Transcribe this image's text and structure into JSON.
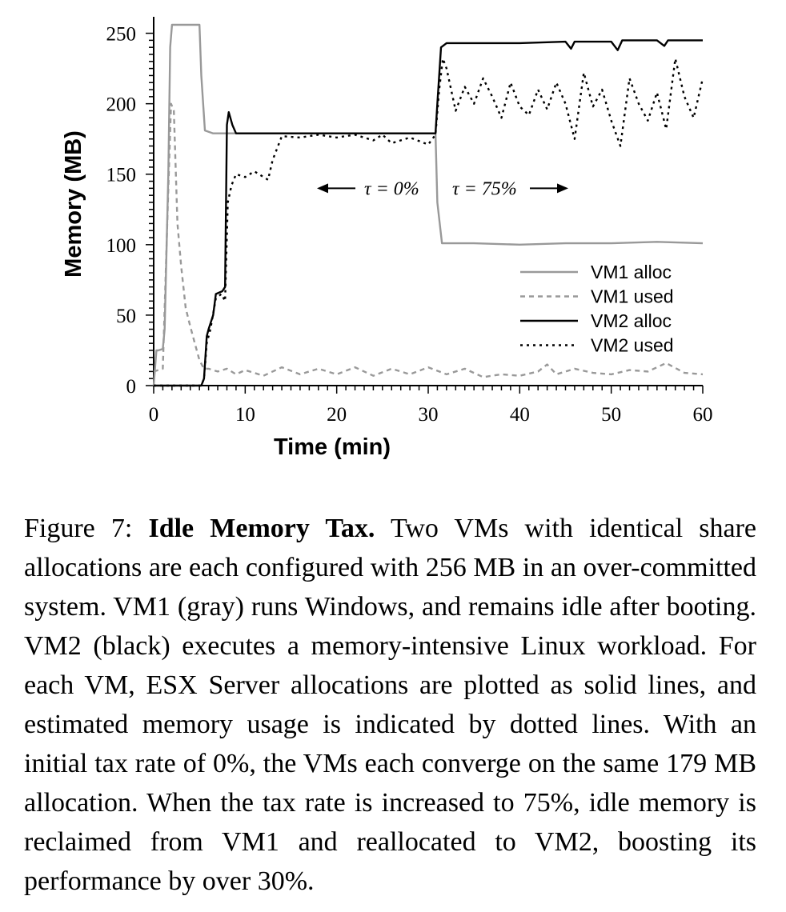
{
  "chart_data": {
    "type": "line",
    "xlabel": "Time (min)",
    "ylabel": "Memory (MB)",
    "xlim": [
      0,
      60
    ],
    "ylim": [
      0,
      256
    ],
    "x_ticks": [
      0,
      10,
      20,
      30,
      40,
      50,
      60
    ],
    "y_ticks": [
      0,
      50,
      100,
      150,
      200,
      250
    ],
    "grid": false,
    "legend_position": "right",
    "annotations": {
      "left": "τ = 0%",
      "right": "τ = 75%"
    },
    "series": [
      {
        "name": "VM1 alloc",
        "style": "solid",
        "color": "#999999",
        "x": [
          0,
          0.3,
          0.5,
          1.0,
          1.2,
          1.6,
          1.8,
          2.0,
          5.0,
          5.2,
          5.6,
          6.5,
          8,
          10,
          15,
          20,
          25,
          30.8,
          31.0,
          31.5,
          35,
          40,
          45,
          50,
          55,
          60
        ],
        "y": [
          0,
          25,
          25,
          26,
          40,
          150,
          240,
          256,
          256,
          220,
          181,
          179,
          179,
          179,
          179,
          179,
          179,
          179,
          130,
          101,
          101,
          100,
          101,
          101,
          102,
          101
        ]
      },
      {
        "name": "VM1 used",
        "style": "dashed",
        "color": "#999999",
        "x": [
          0,
          1,
          1.6,
          1.9,
          2.2,
          2.6,
          3.0,
          3.5,
          4.0,
          4.5,
          5.0,
          5.5,
          6.0,
          7,
          8,
          9,
          10,
          12,
          14,
          16,
          18,
          20,
          22,
          24,
          26,
          28,
          30,
          32,
          34,
          36,
          38,
          40,
          42,
          43,
          44,
          46,
          48,
          50,
          52,
          54,
          56,
          58,
          60
        ],
        "y": [
          10,
          12,
          140,
          200,
          195,
          115,
          85,
          55,
          42,
          30,
          18,
          12,
          12,
          10,
          12,
          8,
          11,
          7,
          13,
          8,
          12,
          8,
          13,
          7,
          12,
          8,
          13,
          8,
          12,
          6,
          8,
          7,
          10,
          15,
          8,
          12,
          9,
          8,
          11,
          10,
          16,
          9,
          8
        ]
      },
      {
        "name": "VM2 alloc",
        "style": "solid",
        "color": "#000000",
        "x": [
          0,
          5.2,
          5.5,
          5.8,
          6.0,
          6.5,
          6.8,
          7.5,
          7.8,
          8.0,
          8.2,
          8.6,
          9.0,
          12,
          15,
          20,
          25,
          30.8,
          31.0,
          31.4,
          32,
          35,
          40,
          45,
          45.6,
          46,
          50,
          50.7,
          51.2,
          55,
          55.8,
          56.2,
          60
        ],
        "y": [
          0,
          0,
          5,
          35,
          40,
          50,
          65,
          67,
          70,
          185,
          194,
          185,
          179,
          179,
          179,
          179,
          179,
          179,
          200,
          240,
          243,
          243,
          243,
          244,
          239,
          244,
          244,
          238,
          245,
          245,
          241,
          245,
          245
        ]
      },
      {
        "name": "VM2 used",
        "style": "dotted",
        "color": "#000000",
        "x": [
          0,
          5.2,
          5.5,
          5.8,
          6.2,
          6.8,
          7.4,
          7.8,
          8.1,
          8.5,
          9.0,
          10.0,
          11.0,
          12.5,
          13.0,
          14.0,
          16,
          18,
          20,
          22,
          24,
          25,
          26,
          28,
          30,
          30.8,
          31.2,
          31.6,
          32.0,
          32.5,
          33,
          34,
          35,
          36,
          37,
          38,
          39,
          40,
          41,
          42,
          43,
          44,
          45,
          46,
          47,
          48,
          49,
          50,
          51,
          52,
          53,
          54,
          55,
          56,
          57,
          58,
          59,
          60
        ],
        "y": [
          0,
          0,
          5,
          30,
          40,
          62,
          65,
          60,
          130,
          142,
          150,
          148,
          152,
          146,
          160,
          177,
          176,
          178,
          176,
          178,
          174,
          178,
          172,
          176,
          171,
          178,
          210,
          232,
          225,
          210,
          195,
          212,
          200,
          218,
          205,
          190,
          215,
          198,
          192,
          210,
          196,
          215,
          200,
          175,
          222,
          198,
          210,
          188,
          170,
          218,
          200,
          188,
          208,
          182,
          232,
          205,
          190,
          218
        ]
      }
    ]
  },
  "caption": {
    "label": "Figure 7:",
    "title": "Idle Memory Tax.",
    "text": "Two VMs with identical share allocations are each configured with 256 MB in an over-committed system. VM1 (gray) runs Windows, and remains idle after booting. VM2 (black) executes a memory-intensive Linux workload. For each VM, ESX Server allocations are plotted as solid lines, and estimated memory usage is indicated by dotted lines. With an initial tax rate of 0%, the VMs each converge on the same 179 MB allocation. When the tax rate is increased to 75%, idle memory is reclaimed from VM1 and reallocated to VM2, boosting its performance by over 30%."
  }
}
